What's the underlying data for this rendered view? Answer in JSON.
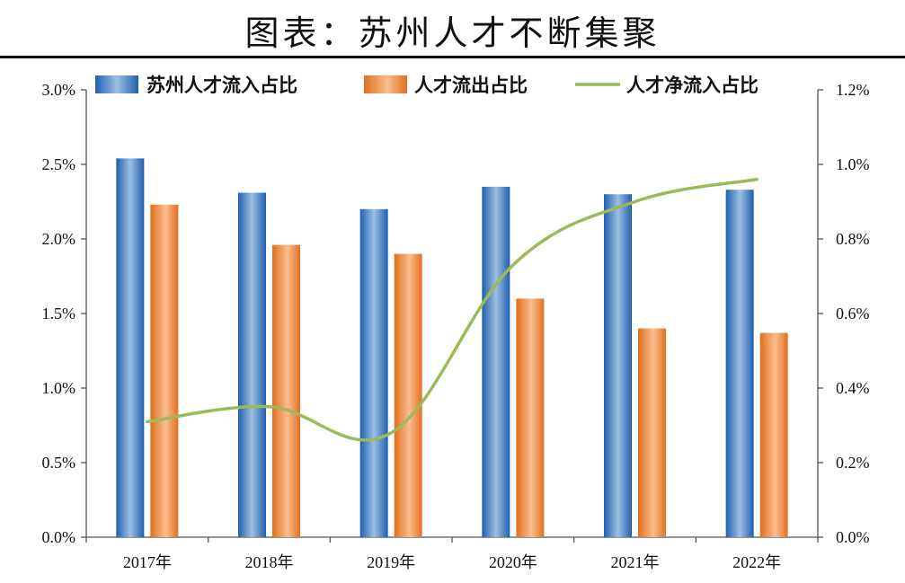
{
  "page": {
    "title": "图表：苏州人才不断集聚"
  },
  "colors": {
    "inflow_dark": "#1f5fb0",
    "inflow_light": "#9dc0e2",
    "outflow_dark": "#e0701f",
    "outflow_light": "#fbbd8e",
    "net_line": "#9bbb59",
    "axis": "#555555"
  },
  "chart_data": {
    "type": "bar",
    "title": "图表：苏州人才不断集聚",
    "categories": [
      "2017年",
      "2018年",
      "2019年",
      "2020年",
      "2021年",
      "2022年"
    ],
    "series": [
      {
        "name": "苏州人才流入占比",
        "type": "bar",
        "axis": "left",
        "values": [
          2.54,
          2.31,
          2.2,
          2.35,
          2.3,
          2.33
        ]
      },
      {
        "name": "人才流出占比",
        "type": "bar",
        "axis": "left",
        "values": [
          2.23,
          1.96,
          1.9,
          1.6,
          1.4,
          1.37
        ]
      },
      {
        "name": "人才净流入占比",
        "type": "line",
        "axis": "right",
        "values": [
          0.31,
          0.35,
          0.28,
          0.73,
          0.9,
          0.96
        ]
      }
    ],
    "y_left": {
      "min": 0,
      "max": 3.0,
      "step": 0.5,
      "ticks": [
        "0.0%",
        "0.5%",
        "1.0%",
        "1.5%",
        "2.0%",
        "2.5%",
        "3.0%"
      ]
    },
    "y_right": {
      "min": 0,
      "max": 1.2,
      "step": 0.2,
      "ticks": [
        "0.0%",
        "0.2%",
        "0.4%",
        "0.6%",
        "0.8%",
        "1.0%",
        "1.2%"
      ]
    },
    "grid": false,
    "legend_position": "top"
  }
}
